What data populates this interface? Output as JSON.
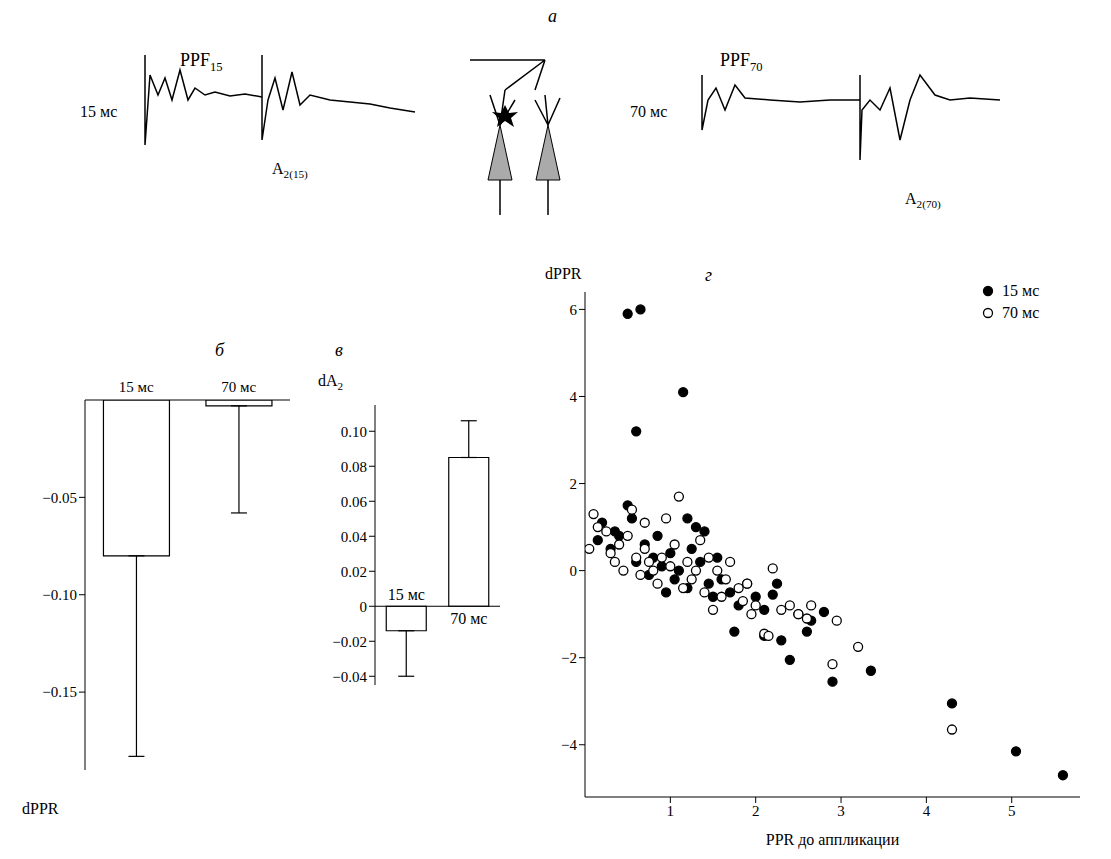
{
  "panel_a": {
    "letter": "а",
    "left": {
      "title": {
        "text": "PPF",
        "sub": "15"
      },
      "interval": "15 мс",
      "amplitude": {
        "text": "A",
        "sub": "2(15)"
      }
    },
    "right": {
      "title": {
        "text": "PPF",
        "sub": "70"
      },
      "interval": "70 мс",
      "amplitude": {
        "text": "A",
        "sub": "2(70)"
      }
    }
  },
  "chart_data": [
    {
      "type": "bar",
      "panel": "б",
      "categories": [
        "15 мс",
        "70 мс"
      ],
      "values": [
        -0.08,
        -0.003
      ],
      "errors": [
        0.103,
        0.055
      ],
      "color": "#ffffff",
      "ylim": [
        -0.19,
        0
      ],
      "yticks": [
        {
          "value": -0.05,
          "label": "−0.05"
        },
        {
          "value": -0.1,
          "label": "−0.10"
        },
        {
          "value": -0.15,
          "label": "−0.15"
        }
      ],
      "y_label": {
        "text": "dPPR",
        "sub": ""
      }
    },
    {
      "type": "bar",
      "panel": "в",
      "categories": [
        "15 мс",
        "70 мс"
      ],
      "values": [
        -0.014,
        0.085
      ],
      "errors": [
        0.026,
        0.021
      ],
      "color": "#ffffff",
      "ylim": [
        -0.045,
        0.115
      ],
      "yticks": [
        {
          "value": -0.04,
          "label": "−0.04"
        },
        {
          "value": -0.02,
          "label": "−0.02"
        },
        0,
        0.02,
        0.04,
        0.06,
        0.08,
        {
          "value": 0.1,
          "label": "0.10"
        }
      ],
      "y_label": {
        "text": "dA",
        "sub": "2"
      }
    },
    {
      "type": "scatter",
      "panel": "г",
      "x_label": "PPR до аппликации",
      "y_label": "dPPR",
      "legend": "top-right",
      "xlim": [
        0,
        5.8
      ],
      "xticks": [
        1,
        2,
        3,
        4,
        5
      ],
      "ylim": [
        -5.2,
        6.4
      ],
      "yticks": [
        {
          "value": -4,
          "label": "−4"
        },
        {
          "value": -2,
          "label": "−2"
        },
        0,
        2,
        4,
        6
      ],
      "series": [
        {
          "name": "15 мс",
          "color": "#000000",
          "marker": "filled",
          "x": [
            0.5,
            0.65,
            1.15,
            0.6,
            4.3,
            5.05,
            5.6,
            3.35,
            2.9,
            2.4,
            2.8,
            2.6,
            2.65,
            2.5,
            2.3,
            2.1,
            2.2,
            1.75,
            1.3,
            1.2,
            0.5,
            0.55,
            0.2,
            0.15,
            0.3,
            0.4,
            0.7,
            0.8,
            0.9,
            1.0,
            1.05,
            1.1,
            1.2,
            1.35,
            1.45,
            1.5,
            1.6,
            1.7,
            1.8,
            1.9,
            2.0,
            2.1,
            0.6,
            0.75,
            0.95,
            1.25,
            1.4,
            2.25,
            1.55,
            0.35,
            0.85
          ],
          "values": [
            5.9,
            6.0,
            4.1,
            3.2,
            -3.05,
            -4.15,
            -4.7,
            -2.3,
            -2.55,
            -2.05,
            -0.95,
            -1.4,
            -1.15,
            -1.0,
            -1.6,
            -1.5,
            -0.55,
            -1.4,
            1.0,
            1.2,
            1.5,
            1.2,
            1.1,
            0.7,
            0.5,
            0.8,
            0.6,
            0.3,
            0.1,
            0.4,
            -0.2,
            0.0,
            -0.4,
            0.2,
            -0.3,
            -0.6,
            -0.2,
            -0.5,
            -0.8,
            -0.3,
            -0.6,
            -0.9,
            0.2,
            -0.1,
            -0.5,
            0.5,
            0.9,
            -0.3,
            0.3,
            0.9,
            0.8
          ]
        },
        {
          "name": "70 мс",
          "color": "#000000",
          "marker": "open",
          "x": [
            0.05,
            0.1,
            0.15,
            0.25,
            0.3,
            0.35,
            0.4,
            0.45,
            0.5,
            0.55,
            0.6,
            0.65,
            0.7,
            0.75,
            0.8,
            0.85,
            0.9,
            0.95,
            1.0,
            1.05,
            1.1,
            1.15,
            1.2,
            1.25,
            1.3,
            1.4,
            1.45,
            1.5,
            1.55,
            1.6,
            1.65,
            1.7,
            1.8,
            1.85,
            1.9,
            1.95,
            2.0,
            2.1,
            2.15,
            2.2,
            2.3,
            2.4,
            2.5,
            2.6,
            2.65,
            2.9,
            2.95,
            3.2,
            4.3,
            0.7,
            1.35
          ],
          "values": [
            0.5,
            1.3,
            1.0,
            0.9,
            0.4,
            0.2,
            0.6,
            0.0,
            0.8,
            1.4,
            0.3,
            -0.1,
            0.5,
            0.2,
            0.0,
            -0.3,
            0.3,
            1.2,
            0.1,
            0.6,
            1.7,
            -0.4,
            0.2,
            -0.2,
            0.0,
            -0.5,
            0.3,
            -0.9,
            0.0,
            -0.6,
            -0.2,
            0.2,
            -0.4,
            -0.7,
            -0.3,
            -1.0,
            -0.8,
            -1.45,
            -1.5,
            0.05,
            -0.9,
            -0.8,
            -1.0,
            -1.1,
            -0.8,
            -2.15,
            -1.15,
            -1.75,
            -3.65,
            1.1,
            0.7
          ]
        }
      ]
    }
  ]
}
